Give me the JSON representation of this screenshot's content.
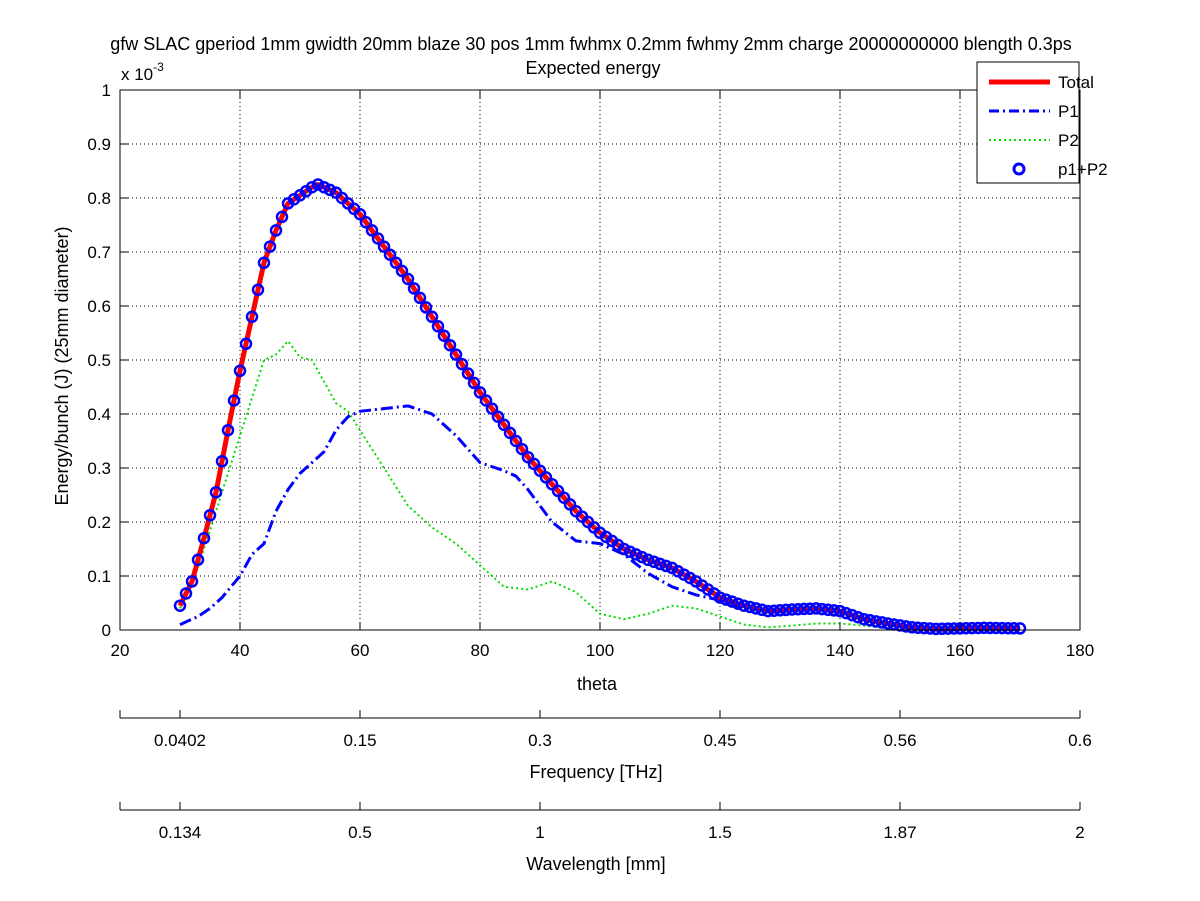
{
  "chart_data": {
    "type": "line",
    "title": "gfw SLAC gperiod 1mm gwidth 20mm blaze 30 pos 1mm fwhmx 0.2mm fwhmy 2mm charge 20000000000 blength 0.3ps",
    "subtitle": "Expected energy",
    "xlabel": "theta",
    "ylabel": "Energy/bunch (J) (25mm diameter)",
    "y_multiplier_text": "x 10",
    "y_multiplier_exp": "-3",
    "xlim": [
      20,
      180
    ],
    "ylim": [
      0,
      1
    ],
    "x_ticks": [
      20,
      40,
      60,
      80,
      100,
      120,
      140,
      160,
      180
    ],
    "y_ticks": [
      0,
      0.1,
      0.2,
      0.3,
      0.4,
      0.5,
      0.6,
      0.7,
      0.8,
      0.9,
      1
    ],
    "grid": true,
    "legend_position": "top-right",
    "legend": [
      "Total",
      "P1",
      "P2",
      "p1+P2"
    ],
    "series": [
      {
        "name": "Total",
        "color": "#ff0000",
        "style": "solid",
        "x": [
          30,
          32,
          34,
          36,
          38,
          40,
          42,
          44,
          46,
          48,
          50,
          52,
          53,
          56,
          60,
          64,
          68,
          72,
          76,
          80,
          84,
          88,
          92,
          96,
          100,
          104,
          108,
          112,
          116,
          120,
          124,
          128,
          132,
          136,
          140,
          144,
          148,
          152,
          156,
          160,
          164,
          170
        ],
        "y": [
          0.045,
          0.09,
          0.17,
          0.255,
          0.37,
          0.48,
          0.58,
          0.68,
          0.74,
          0.79,
          0.805,
          0.82,
          0.825,
          0.81,
          0.77,
          0.71,
          0.65,
          0.58,
          0.51,
          0.44,
          0.38,
          0.32,
          0.27,
          0.22,
          0.18,
          0.15,
          0.13,
          0.115,
          0.09,
          0.06,
          0.045,
          0.035,
          0.038,
          0.04,
          0.035,
          0.02,
          0.012,
          0.005,
          0.002,
          0.003,
          0.004,
          0.003
        ]
      },
      {
        "name": "P1",
        "color": "#0000ff",
        "style": "dashdot",
        "x": [
          30,
          33,
          35,
          37,
          40,
          42,
          44,
          46,
          48,
          50,
          52,
          54,
          56,
          58,
          60,
          64,
          68,
          72,
          76,
          80,
          84,
          86,
          88,
          92,
          96,
          100,
          104,
          108,
          112,
          116,
          120,
          124,
          128,
          132,
          136,
          140,
          144,
          148,
          152,
          156,
          160,
          164,
          170
        ],
        "y": [
          0.01,
          0.025,
          0.04,
          0.06,
          0.1,
          0.14,
          0.16,
          0.22,
          0.26,
          0.29,
          0.31,
          0.33,
          0.37,
          0.395,
          0.405,
          0.41,
          0.415,
          0.4,
          0.36,
          0.31,
          0.295,
          0.285,
          0.26,
          0.2,
          0.165,
          0.16,
          0.14,
          0.105,
          0.08,
          0.065,
          0.055,
          0.04,
          0.035,
          0.038,
          0.04,
          0.034,
          0.02,
          0.01,
          0.005,
          0.002,
          0.003,
          0.004,
          0.003
        ]
      },
      {
        "name": "P2",
        "color": "#00dd00",
        "style": "dotted",
        "x": [
          30,
          32,
          34,
          36,
          38,
          40,
          42,
          44,
          46,
          48,
          50,
          52,
          54,
          56,
          58,
          60,
          64,
          68,
          72,
          76,
          80,
          84,
          88,
          92,
          96,
          100,
          104,
          108,
          112,
          116,
          120,
          124,
          128,
          132,
          136,
          140,
          144,
          148,
          150
        ],
        "y": [
          0.04,
          0.085,
          0.15,
          0.22,
          0.29,
          0.36,
          0.43,
          0.5,
          0.51,
          0.535,
          0.505,
          0.5,
          0.46,
          0.42,
          0.405,
          0.37,
          0.3,
          0.23,
          0.19,
          0.16,
          0.12,
          0.08,
          0.075,
          0.09,
          0.07,
          0.03,
          0.02,
          0.03,
          0.045,
          0.04,
          0.025,
          0.01,
          0.005,
          0.008,
          0.012,
          0.012,
          0.008,
          0.003,
          0.0
        ]
      },
      {
        "name": "p1+P2",
        "color": "#0000ff",
        "style": "markers",
        "x_start": 30,
        "x_end": 170,
        "x_step": 1
      }
    ],
    "secondary_axes": [
      {
        "label": "Frequency [THz]",
        "tick_labels": [
          "0.0402",
          "0.15",
          "0.3",
          "0.45",
          "0.56",
          "0.6"
        ],
        "tick_theta": [
          30,
          60,
          90,
          120,
          150,
          180
        ]
      },
      {
        "label": "Wavelength [mm]",
        "tick_labels": [
          "0.134",
          "0.5",
          "1",
          "1.5",
          "1.87",
          "2"
        ],
        "tick_theta": [
          30,
          60,
          90,
          120,
          150,
          180
        ]
      }
    ]
  }
}
